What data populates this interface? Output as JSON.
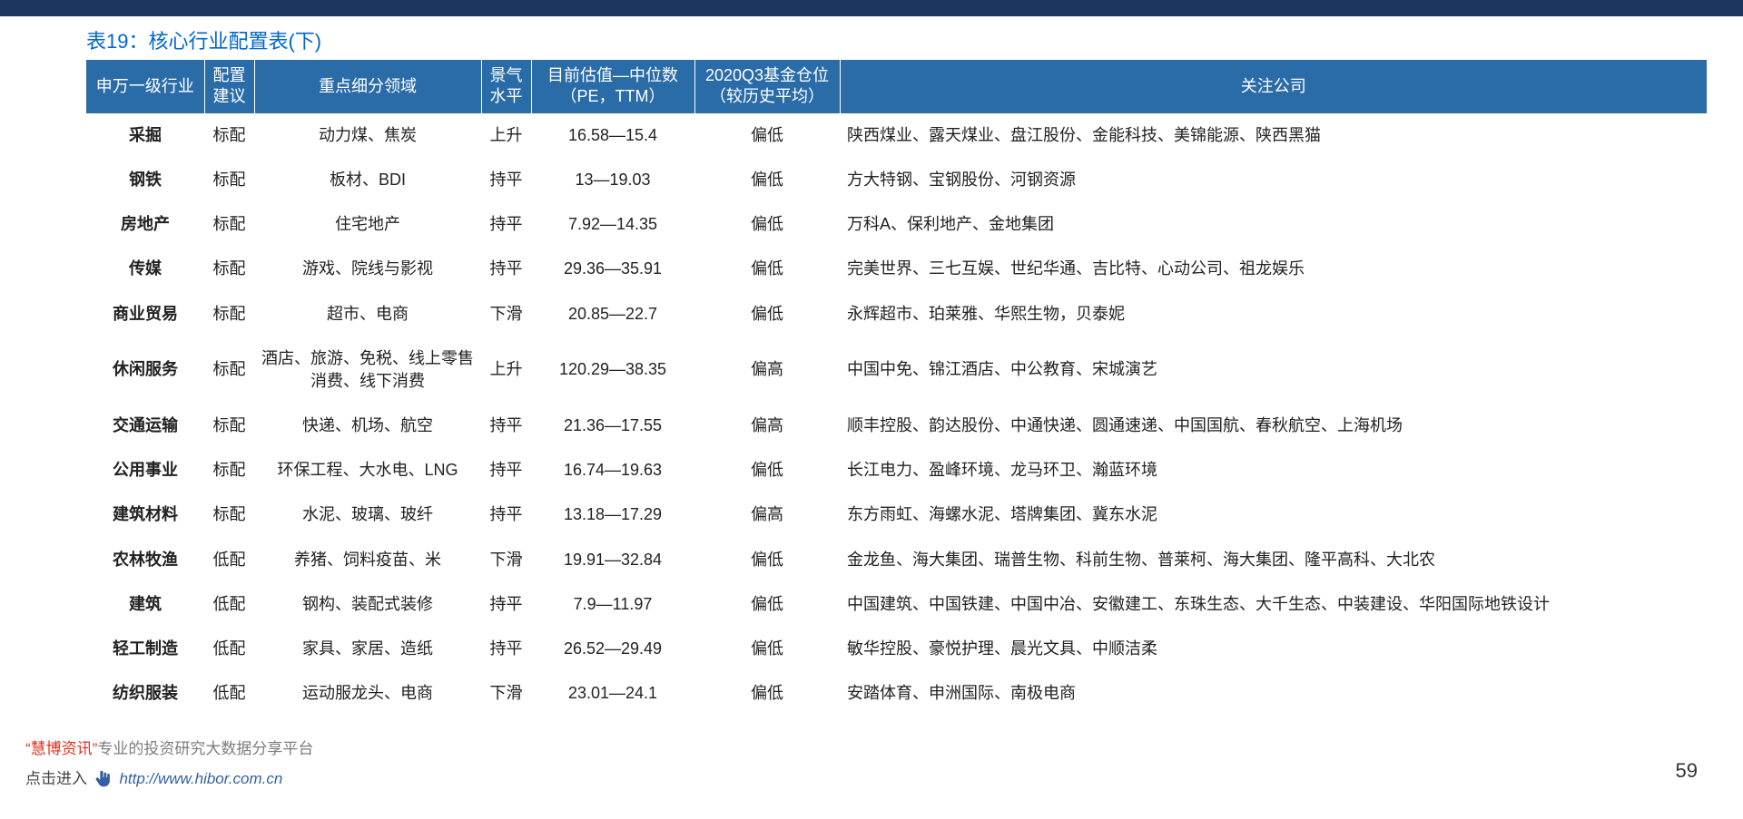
{
  "title": "表19：核心行业配置表(下)",
  "page_number": "59",
  "colors": {
    "top_bar": "#1c355e",
    "title": "#0066cc",
    "header_bg": "#2a6ca8",
    "header_fg": "#ffffff",
    "cell_fg": "#222222",
    "footer_red": "#e03020",
    "footer_gray": "#7d7d7d",
    "footer_link": "#345fa6"
  },
  "columns": [
    "申万一级行业",
    "配置\n建议",
    "重点细分领域",
    "景气\n水平",
    "目前估值—中位数\n（PE，TTM）",
    "2020Q3基金仓位\n（较历史平均）",
    "关注公司"
  ],
  "rows": [
    {
      "industry": "采掘",
      "advice": "标配",
      "sub": "动力煤、焦炭",
      "boom": "上升",
      "pe": "16.58—15.4",
      "fund": "偏低",
      "company": "陕西煤业、露天煤业、盘江股份、金能科技、美锦能源、陕西黑猫"
    },
    {
      "industry": "钢铁",
      "advice": "标配",
      "sub": "板材、BDI",
      "boom": "持平",
      "pe": "13—19.03",
      "fund": "偏低",
      "company": "方大特钢、宝钢股份、河钢资源"
    },
    {
      "industry": "房地产",
      "advice": "标配",
      "sub": "住宅地产",
      "boom": "持平",
      "pe": "7.92—14.35",
      "fund": "偏低",
      "company": "万科A、保利地产、金地集团"
    },
    {
      "industry": "传媒",
      "advice": "标配",
      "sub": "游戏、院线与影视",
      "boom": "持平",
      "pe": "29.36—35.91",
      "fund": "偏低",
      "company": "完美世界、三七互娱、世纪华通、吉比特、心动公司、祖龙娱乐"
    },
    {
      "industry": "商业贸易",
      "advice": "标配",
      "sub": "超市、电商",
      "boom": "下滑",
      "pe": "20.85—22.7",
      "fund": "偏低",
      "company": "永辉超市、珀莱雅、华熙生物，贝泰妮"
    },
    {
      "industry": "休闲服务",
      "advice": "标配",
      "sub": "酒店、旅游、免税、线上零售消费、线下消费",
      "boom": "上升",
      "pe": "120.29—38.35",
      "fund": "偏高",
      "company": "中国中免、锦江酒店、中公教育、宋城演艺"
    },
    {
      "industry": "交通运输",
      "advice": "标配",
      "sub": "快递、机场、航空",
      "boom": "持平",
      "pe": "21.36—17.55",
      "fund": "偏高",
      "company": "顺丰控股、韵达股份、中通快递、圆通速递、中国国航、春秋航空、上海机场"
    },
    {
      "industry": "公用事业",
      "advice": "标配",
      "sub": "环保工程、大水电、LNG",
      "boom": "持平",
      "pe": "16.74—19.63",
      "fund": "偏低",
      "company": "长江电力、盈峰环境、龙马环卫、瀚蓝环境"
    },
    {
      "industry": "建筑材料",
      "advice": "标配",
      "sub": "水泥、玻璃、玻纤",
      "boom": "持平",
      "pe": "13.18—17.29",
      "fund": "偏高",
      "company": "东方雨虹、海螺水泥、塔牌集团、冀东水泥"
    },
    {
      "industry": "农林牧渔",
      "advice": "低配",
      "sub": "养猪、饲料疫苗、米",
      "boom": "下滑",
      "pe": "19.91—32.84",
      "fund": "偏低",
      "company": "金龙鱼、海大集团、瑞普生物、科前生物、普莱柯、海大集团、隆平高科、大北农"
    },
    {
      "industry": "建筑",
      "advice": "低配",
      "sub": "钢构、装配式装修",
      "boom": "持平",
      "pe": "7.9—11.97",
      "fund": "偏低",
      "company": "中国建筑、中国铁建、中国中冶、安徽建工、东珠生态、大千生态、中装建设、华阳国际地铁设计"
    },
    {
      "industry": "轻工制造",
      "advice": "低配",
      "sub": "家具、家居、造纸",
      "boom": "持平",
      "pe": "26.52—29.49",
      "fund": "偏低",
      "company": "敏华控股、豪悦护理、晨光文具、中顺洁柔"
    },
    {
      "industry": "纺织服装",
      "advice": "低配",
      "sub": "运动服龙头、电商",
      "boom": "下滑",
      "pe": "23.01—24.1",
      "fund": "偏低",
      "company": "安踏体育、申洲国际、南极电商"
    }
  ],
  "footer": {
    "line1_red": "“慧博资讯”",
    "line1_gray": "专业的投资研究大数据分享平台",
    "line2_click": "点击进入",
    "line2_link": "http://www.hibor.com.cn",
    "watermark_overlay": "www.hibor.com.cn"
  }
}
